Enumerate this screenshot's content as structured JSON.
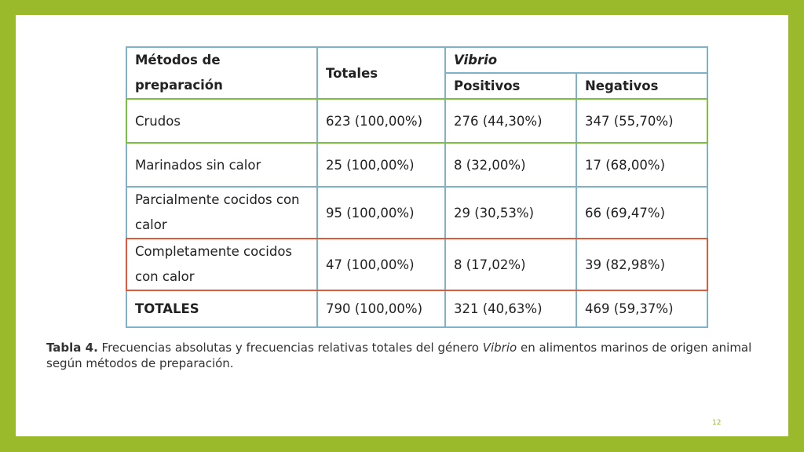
{
  "table": {
    "header": {
      "method_label": "Métodos de preparación",
      "totals_label": "Totales",
      "vibrio_label": "Vibrio",
      "positives_label": "Positivos",
      "negatives_label": "Negativos"
    },
    "rows": [
      {
        "method": "Crudos",
        "total": "623 (100,00%)",
        "positive": "276 (44,30%)",
        "negative": "347 (55,70%)"
      },
      {
        "method": "Marinados sin calor",
        "total": "25 (100,00%)",
        "positive": "8 (32,00%)",
        "negative": "17 (68,00%)"
      },
      {
        "method": "Parcialmente cocidos con calor",
        "total": "95 (100,00%)",
        "positive": "29 (30,53%)",
        "negative": "66 (69,47%)"
      },
      {
        "method": "Completamente cocidos con calor",
        "total": "47 (100,00%)",
        "positive": "8 (17,02%)",
        "negative": "39 (82,98%)"
      }
    ],
    "totals_row": {
      "method": "TOTALES",
      "total": "790 (100,00%)",
      "positive": "321 (40,63%)",
      "negative": "469 (59,37%)"
    }
  },
  "caption": {
    "label": "Tabla 4.",
    "text_before": " Frecuencias absolutas y frecuencias relativas totales del género ",
    "italic": "Vibrio",
    "text_after": " en alimentos marinos de origen animal según métodos de preparación."
  },
  "page_number": "12",
  "colors": {
    "frame": "#9aba2b",
    "table_border": "#7fb2c8",
    "highlight_crudos": "#7cc041",
    "highlight_cocidos": "#e05a3a"
  }
}
